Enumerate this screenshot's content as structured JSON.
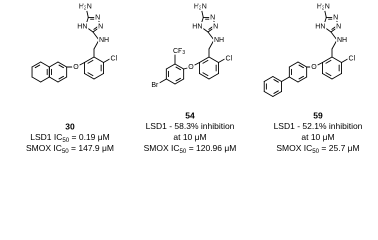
{
  "compounds": [
    {
      "label": "30",
      "atoms": {
        "amine": [
          "H",
          "2",
          "N"
        ],
        "ring_n1": [
          "N"
        ],
        "ring_n2": [
          "N"
        ],
        "ring_nh": [
          "HN"
        ],
        "linker": [
          "NH"
        ],
        "ether": [
          "O"
        ],
        "chloro": [
          "Cl"
        ]
      },
      "substituents": [],
      "captions": [
        [
          "LSD1 IC",
          "50",
          " = 0.19 μM"
        ],
        [
          "SMOX IC",
          "50",
          " = 147.9 μM"
        ]
      ]
    },
    {
      "label": "54",
      "atoms": {
        "amine": [
          "H",
          "2",
          "N"
        ],
        "ring_n1": [
          "N"
        ],
        "ring_n2": [
          "N"
        ],
        "ring_nh": [
          "HN"
        ],
        "linker": [
          "NH"
        ],
        "ether": [
          "O"
        ],
        "chloro": [
          "Cl"
        ]
      },
      "substituents": [
        [
          "CF",
          "3"
        ],
        [
          "Br"
        ]
      ],
      "captions": [
        [
          "LSD1 - 58.3% inhibition"
        ],
        [
          "at 10 μM"
        ],
        [
          "SMOX IC",
          "50",
          " = 120.96 μM"
        ]
      ]
    },
    {
      "label": "59",
      "atoms": {
        "amine": [
          "H",
          "2",
          "N"
        ],
        "ring_n1": [
          "N"
        ],
        "ring_n2": [
          "N"
        ],
        "ring_nh": [
          "HN"
        ],
        "linker": [
          "NH"
        ],
        "ether": [
          "O"
        ],
        "chloro": [
          "Cl"
        ]
      },
      "substituents": [],
      "captions": [
        [
          "LSD1 - 52.1% inhibition"
        ],
        [
          "at 10 μM"
        ],
        [
          "SMOX IC",
          "50",
          " = 25.7 μM"
        ]
      ]
    }
  ]
}
